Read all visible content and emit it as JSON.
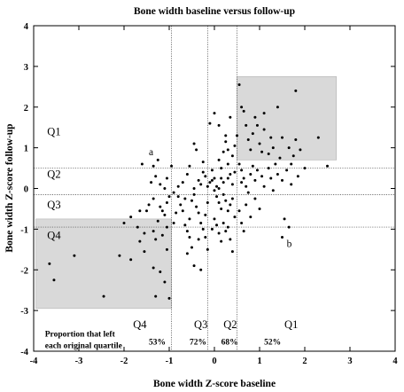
{
  "chart_data": {
    "type": "scatter",
    "title": "Bone width baseline versus follow-up",
    "xlabel": "Bone width Z-score baseline",
    "ylabel": "Bone width Z-score follow-up",
    "xlim": [
      -4,
      4
    ],
    "ylim": [
      -4,
      4
    ],
    "xticks": [
      -4,
      -3,
      -2,
      -1,
      0,
      1,
      2,
      3,
      4
    ],
    "yticks": [
      -4,
      -3,
      -2,
      -1,
      0,
      1,
      2,
      3,
      4
    ],
    "grid": false,
    "quartile_cutoffs": [
      -0.95,
      -0.15,
      0.5
    ],
    "shaded_regions": [
      {
        "x": [
          -3.95,
          -0.95
        ],
        "y": [
          -2.95,
          -0.75
        ]
      },
      {
        "x": [
          0.5,
          2.7
        ],
        "y": [
          0.7,
          2.75
        ]
      }
    ],
    "row_labels": [
      {
        "text": "Q1",
        "x": -3.7,
        "y": 1.4
      },
      {
        "text": "Q2",
        "x": -3.7,
        "y": 0.35
      },
      {
        "text": "Q3",
        "x": -3.7,
        "y": -0.4
      },
      {
        "text": "Q4",
        "x": -3.7,
        "y": -1.15
      }
    ],
    "column_labels": [
      {
        "text": "Q4",
        "x": -1.8,
        "y": -3.35
      },
      {
        "text": "Q3",
        "x": -0.45,
        "y": -3.35
      },
      {
        "text": "Q2",
        "x": 0.2,
        "y": -3.35
      },
      {
        "text": "Q1",
        "x": 1.55,
        "y": -3.35
      }
    ],
    "note": [
      "Proportion that left",
      "each original quartile"
    ],
    "proportions": [
      {
        "quartile": "Q4",
        "value": "53%",
        "x": -1.45
      },
      {
        "quartile": "Q3",
        "value": "72%",
        "x": -0.55
      },
      {
        "quartile": "Q2",
        "value": "68%",
        "x": 0.15
      },
      {
        "quartile": "Q1",
        "value": "52%",
        "x": 1.1
      }
    ],
    "annotations": [
      {
        "text": "a",
        "x": -1.45,
        "y": 0.9
      },
      {
        "text": "b",
        "x": 1.6,
        "y": -1.35
      }
    ],
    "points": [
      [
        -3.65,
        -1.85
      ],
      [
        -3.55,
        -2.25
      ],
      [
        -3.1,
        -1.65
      ],
      [
        -2.45,
        -2.65
      ],
      [
        -2.1,
        -1.65
      ],
      [
        -1.85,
        -1.75
      ],
      [
        -1.55,
        -1.1
      ],
      [
        -1.55,
        -1.55
      ],
      [
        -1.65,
        -1.3
      ],
      [
        -1.35,
        -1.05
      ],
      [
        -1.3,
        -1.25
      ],
      [
        -1.35,
        -1.95
      ],
      [
        -1.2,
        -2.05
      ],
      [
        -1.1,
        -2.3
      ],
      [
        -1.3,
        -2.65
      ],
      [
        -1.0,
        -2.7
      ],
      [
        -1.05,
        -1.5
      ],
      [
        -1.15,
        -1.15
      ],
      [
        -1.05,
        -0.95
      ],
      [
        -1.25,
        -0.8
      ],
      [
        -2.0,
        -0.85
      ],
      [
        -1.85,
        -0.7
      ],
      [
        -1.65,
        -0.55
      ],
      [
        -1.5,
        -0.55
      ],
      [
        -1.45,
        -0.4
      ],
      [
        -1.35,
        -0.25
      ],
      [
        -1.2,
        -0.45
      ],
      [
        -1.15,
        -0.55
      ],
      [
        -1.1,
        -0.65
      ],
      [
        -1.05,
        -0.35
      ],
      [
        -1.0,
        -0.2
      ],
      [
        -1.6,
        0.6
      ],
      [
        -1.35,
        0.55
      ],
      [
        -1.25,
        0.7
      ],
      [
        -1.3,
        0.3
      ],
      [
        -1.2,
        0.1
      ],
      [
        -1.1,
        0.0
      ],
      [
        -1.05,
        0.25
      ],
      [
        -0.95,
        0.55
      ],
      [
        -0.8,
        -0.2
      ],
      [
        -0.75,
        -0.4
      ],
      [
        -0.7,
        -0.55
      ],
      [
        -0.65,
        -0.9
      ],
      [
        -0.6,
        -1.05
      ],
      [
        -0.55,
        -0.75
      ],
      [
        -0.5,
        -0.3
      ],
      [
        -0.45,
        -0.15
      ],
      [
        -0.4,
        -0.45
      ],
      [
        -0.35,
        -0.6
      ],
      [
        -0.3,
        -0.85
      ],
      [
        -0.25,
        -1.0
      ],
      [
        -0.2,
        -1.2
      ],
      [
        -0.35,
        -1.25
      ],
      [
        -0.5,
        -1.45
      ],
      [
        -0.6,
        -1.6
      ],
      [
        -0.45,
        -1.9
      ],
      [
        -0.3,
        -2.0
      ],
      [
        -0.15,
        -1.5
      ],
      [
        -0.2,
        -0.65
      ],
      [
        -0.15,
        -0.35
      ],
      [
        -0.8,
        0.05
      ],
      [
        -0.7,
        0.15
      ],
      [
        -0.6,
        0.35
      ],
      [
        -0.55,
        0.55
      ],
      [
        -0.45,
        0.0
      ],
      [
        -0.35,
        0.2
      ],
      [
        -0.3,
        0.1
      ],
      [
        -0.25,
        0.4
      ],
      [
        -0.2,
        0.3
      ],
      [
        -0.15,
        0.05
      ],
      [
        -0.1,
        0.15
      ],
      [
        -0.05,
        0.45
      ],
      [
        0.0,
        0.25
      ],
      [
        0.05,
        0.05
      ],
      [
        -0.45,
        1.1
      ],
      [
        -0.4,
        0.95
      ],
      [
        -0.05,
        0.2
      ],
      [
        -0.1,
        1.6
      ],
      [
        0.0,
        1.85
      ],
      [
        0.1,
        0.7
      ],
      [
        0.15,
        0.5
      ],
      [
        0.2,
        0.9
      ],
      [
        0.25,
        1.15
      ],
      [
        0.3,
        0.6
      ],
      [
        0.35,
        0.35
      ],
      [
        0.4,
        0.8
      ],
      [
        0.45,
        1.05
      ],
      [
        0.1,
        1.55
      ],
      [
        0.25,
        1.3
      ],
      [
        0.35,
        1.75
      ],
      [
        0.0,
        -0.05
      ],
      [
        0.05,
        -0.2
      ],
      [
        0.1,
        -0.35
      ],
      [
        0.15,
        -0.5
      ],
      [
        0.2,
        -0.15
      ],
      [
        0.25,
        -0.3
      ],
      [
        0.3,
        -0.55
      ],
      [
        0.35,
        -0.4
      ],
      [
        0.4,
        -0.25
      ],
      [
        0.45,
        -0.7
      ],
      [
        0.0,
        -0.75
      ],
      [
        0.05,
        -0.9
      ],
      [
        0.1,
        -1.1
      ],
      [
        0.15,
        -1.3
      ],
      [
        0.25,
        -1.05
      ],
      [
        0.3,
        -0.95
      ],
      [
        0.35,
        -1.25
      ],
      [
        0.4,
        -1.55
      ],
      [
        -0.05,
        -1.0
      ],
      [
        0.1,
        0.0
      ],
      [
        0.2,
        0.15
      ],
      [
        0.3,
        0.25
      ],
      [
        0.4,
        0.1
      ],
      [
        0.45,
        0.4
      ],
      [
        0.15,
        0.25
      ],
      [
        0.55,
        2.55
      ],
      [
        0.6,
        2.0
      ],
      [
        0.65,
        1.9
      ],
      [
        0.7,
        1.55
      ],
      [
        0.75,
        1.2
      ],
      [
        0.8,
        0.95
      ],
      [
        0.85,
        1.35
      ],
      [
        0.9,
        1.75
      ],
      [
        1.0,
        1.1
      ],
      [
        1.05,
        0.9
      ],
      [
        1.1,
        1.45
      ],
      [
        1.2,
        0.85
      ],
      [
        1.25,
        1.25
      ],
      [
        1.3,
        1.0
      ],
      [
        1.45,
        0.75
      ],
      [
        1.5,
        1.25
      ],
      [
        1.65,
        1.0
      ],
      [
        1.75,
        0.8
      ],
      [
        1.8,
        1.2
      ],
      [
        1.9,
        0.95
      ],
      [
        1.8,
        2.4
      ],
      [
        1.4,
        2.0
      ],
      [
        1.1,
        1.85
      ],
      [
        2.3,
        1.25
      ],
      [
        2.5,
        0.55
      ],
      [
        0.55,
        0.6
      ],
      [
        0.6,
        0.45
      ],
      [
        0.65,
        0.25
      ],
      [
        0.7,
        0.05
      ],
      [
        0.75,
        -0.1
      ],
      [
        0.8,
        0.35
      ],
      [
        0.85,
        0.55
      ],
      [
        0.9,
        0.2
      ],
      [
        0.95,
        0.45
      ],
      [
        1.05,
        0.3
      ],
      [
        1.1,
        0.05
      ],
      [
        1.2,
        0.5
      ],
      [
        1.25,
        0.25
      ],
      [
        1.3,
        -0.05
      ],
      [
        1.4,
        0.35
      ],
      [
        1.5,
        0.2
      ],
      [
        1.6,
        0.45
      ],
      [
        1.7,
        0.1
      ],
      [
        1.85,
        0.3
      ],
      [
        2.0,
        0.5
      ],
      [
        0.55,
        -0.55
      ],
      [
        0.6,
        -0.85
      ],
      [
        0.7,
        -0.4
      ],
      [
        0.8,
        -0.7
      ],
      [
        0.9,
        -0.25
      ],
      [
        1.0,
        -0.5
      ],
      [
        1.55,
        -0.75
      ],
      [
        1.5,
        -1.2
      ],
      [
        1.65,
        -0.95
      ],
      [
        0.65,
        -1.05
      ],
      [
        -1.7,
        -0.95
      ],
      [
        -0.9,
        -0.85
      ],
      [
        -0.85,
        -0.6
      ],
      [
        -0.25,
        0.65
      ],
      [
        0.5,
        1.3
      ],
      [
        -1.4,
        0.15
      ],
      [
        -0.65,
        -0.25
      ],
      [
        0.3,
        0.95
      ],
      [
        0.95,
        1.55
      ],
      [
        1.7,
        0.6
      ],
      [
        -0.55,
        -1.2
      ],
      [
        0.2,
        -0.85
      ],
      [
        -0.9,
        -0.1
      ],
      [
        1.35,
        0.6
      ],
      [
        0.6,
        0.15
      ]
    ]
  }
}
